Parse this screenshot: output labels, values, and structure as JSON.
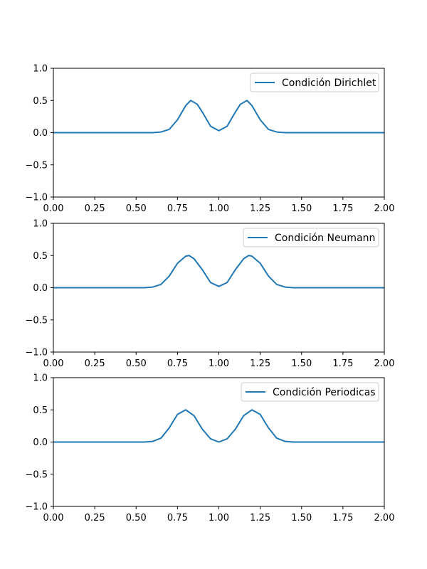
{
  "chart_data": [
    {
      "type": "line",
      "xlim": [
        0,
        2
      ],
      "ylim": [
        -1,
        1
      ],
      "xticks": [
        "0.00",
        "0.25",
        "0.50",
        "0.75",
        "1.00",
        "1.25",
        "1.50",
        "1.75",
        "2.00"
      ],
      "yticks": [
        "1.0",
        "0.5",
        "0.0",
        "−0.5",
        "−1.0"
      ],
      "legend_position": "top-right",
      "grid": false,
      "series": [
        {
          "name": "Condición Dirichlet",
          "color": "#1f77b4",
          "x": [
            0.0,
            0.6,
            0.65,
            0.7,
            0.75,
            0.8,
            0.83,
            0.87,
            0.9,
            0.95,
            1.0,
            1.05,
            1.1,
            1.13,
            1.17,
            1.2,
            1.25,
            1.3,
            1.35,
            1.4,
            2.0
          ],
          "y": [
            0.0,
            0.0,
            0.01,
            0.05,
            0.2,
            0.42,
            0.5,
            0.44,
            0.32,
            0.1,
            0.03,
            0.1,
            0.32,
            0.44,
            0.5,
            0.42,
            0.2,
            0.05,
            0.01,
            0.0,
            0.0
          ]
        }
      ]
    },
    {
      "type": "line",
      "xlim": [
        0,
        2
      ],
      "ylim": [
        -1,
        1
      ],
      "xticks": [
        "0.00",
        "0.25",
        "0.50",
        "0.75",
        "1.00",
        "1.25",
        "1.50",
        "1.75",
        "2.00"
      ],
      "yticks": [
        "1.0",
        "0.5",
        "0.0",
        "−0.5",
        "−1.0"
      ],
      "legend_position": "top-right",
      "grid": false,
      "series": [
        {
          "name": "Condición Neumann",
          "color": "#1f77b4",
          "x": [
            0.0,
            0.55,
            0.6,
            0.65,
            0.7,
            0.75,
            0.8,
            0.82,
            0.85,
            0.9,
            0.95,
            1.0,
            1.05,
            1.1,
            1.15,
            1.18,
            1.2,
            1.25,
            1.3,
            1.35,
            1.4,
            1.45,
            2.0
          ],
          "y": [
            0.0,
            0.0,
            0.01,
            0.05,
            0.18,
            0.38,
            0.49,
            0.5,
            0.45,
            0.28,
            0.08,
            0.02,
            0.08,
            0.28,
            0.45,
            0.5,
            0.49,
            0.38,
            0.18,
            0.05,
            0.01,
            0.0,
            0.0
          ]
        }
      ]
    },
    {
      "type": "line",
      "xlim": [
        0,
        2
      ],
      "ylim": [
        -1,
        1
      ],
      "xticks": [
        "0.00",
        "0.25",
        "0.50",
        "0.75",
        "1.00",
        "1.25",
        "1.50",
        "1.75",
        "2.00"
      ],
      "yticks": [
        "1.0",
        "0.5",
        "0.0",
        "−0.5",
        "−1.0"
      ],
      "legend_position": "top-right",
      "grid": false,
      "series": [
        {
          "name": "Condición Periodicas",
          "color": "#1f77b4",
          "x": [
            0.0,
            0.55,
            0.6,
            0.65,
            0.7,
            0.75,
            0.8,
            0.85,
            0.9,
            0.95,
            1.0,
            1.05,
            1.1,
            1.15,
            1.2,
            1.25,
            1.3,
            1.35,
            1.4,
            1.45,
            2.0
          ],
          "y": [
            0.0,
            0.0,
            0.01,
            0.06,
            0.22,
            0.43,
            0.5,
            0.41,
            0.2,
            0.05,
            0.0,
            0.05,
            0.2,
            0.41,
            0.5,
            0.43,
            0.22,
            0.06,
            0.01,
            0.0,
            0.0
          ]
        }
      ]
    }
  ]
}
